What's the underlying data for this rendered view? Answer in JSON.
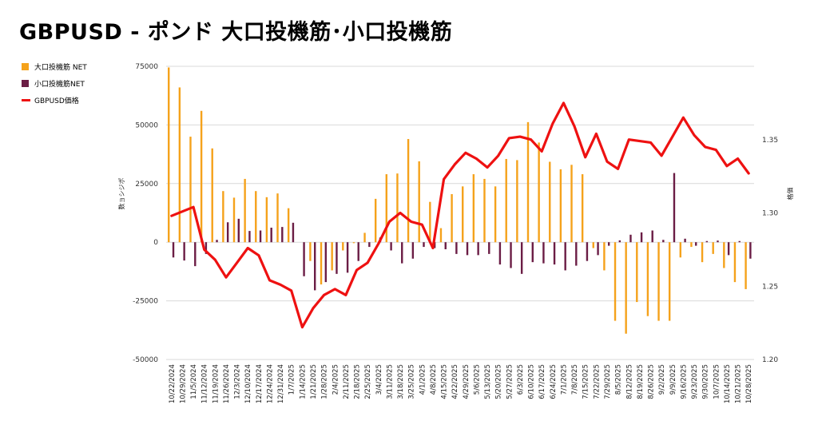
{
  "title": "GBPUSD - ポンド 大口投機筋･小口投機筋",
  "legend": [
    {
      "label": "大口投機筋  NET",
      "color": "#f5a21b",
      "kind": "bar"
    },
    {
      "label": "小口投機筋NET",
      "color": "#6b1d45",
      "kind": "bar"
    },
    {
      "label": "GBPUSD価格",
      "color": "#ee1111",
      "kind": "line"
    }
  ],
  "chart_data": {
    "type": "bar",
    "title": "GBPUSD - ポンド 大口投機筋･小口投機筋",
    "xlabel": "",
    "ylabel": "数ョシジポ",
    "y2label": "格価",
    "ylim": [
      -50000,
      75000
    ],
    "y2lim": [
      1.2,
      1.4
    ],
    "yticks": [
      "75000",
      "50000",
      "25000",
      "0",
      "-25000",
      "-50000"
    ],
    "y2ticks": [
      "1.35",
      "1.30",
      "1.25",
      "1.20"
    ],
    "grid": true,
    "legend_position": "top-left",
    "categories": [
      "10/22/2024",
      "10/29/2024",
      "11/5/2024",
      "11/12/2024",
      "11/19/2024",
      "11/26/2024",
      "12/3/2024",
      "12/10/2024",
      "12/17/2024",
      "12/24/2024",
      "12/31/2024",
      "1/7/2025",
      "1/14/2025",
      "1/21/2025",
      "1/28/2025",
      "2/4/2025",
      "2/11/2025",
      "2/18/2025",
      "2/25/2025",
      "3/4/2025",
      "3/11/2025",
      "3/18/2025",
      "3/25/2025",
      "4/1/2025",
      "4/8/2025",
      "4/15/2025",
      "4/22/2025",
      "4/29/2025",
      "5/6/2025",
      "5/13/2025",
      "5/20/2025",
      "5/27/2025",
      "6/3/2025",
      "6/10/2025",
      "6/17/2025",
      "6/24/2025",
      "7/1/2025",
      "7/8/2025",
      "7/15/2025",
      "7/22/2025",
      "7/29/2025",
      "8/5/2025",
      "8/12/2025",
      "8/19/2025",
      "8/26/2025",
      "9/2/2025",
      "9/9/2025",
      "9/16/2025",
      "9/23/2025",
      "9/30/2025",
      "10/7/2025",
      "10/14/2025",
      "10/21/2025",
      "10/28/2025"
    ],
    "series": [
      {
        "name": "大口投機筋  NET",
        "kind": "bar",
        "color": "#f5a21b",
        "values": [
          74500,
          66000,
          45000,
          56000,
          40000,
          21800,
          19000,
          27000,
          21800,
          19200,
          20800,
          14500,
          0,
          -8000,
          -18000,
          -12000,
          -3500,
          -400,
          4000,
          18500,
          29000,
          29300,
          44000,
          34500,
          17200,
          6000,
          20500,
          23800,
          29000,
          27000,
          23800,
          35500,
          35000,
          51200,
          42500,
          34300,
          31100,
          33000,
          29000,
          -2500,
          -12000,
          -33500,
          -39000,
          -25500,
          -31500,
          -33500,
          -33500,
          -6500,
          -2000,
          -8500,
          -5000,
          -11000,
          -17000,
          -20000
        ]
      },
      {
        "name": "小口投機筋NET",
        "kind": "bar",
        "color": "#6b1d45",
        "values": [
          -6500,
          -7800,
          -10200,
          -5000,
          1000,
          8500,
          10000,
          4800,
          5000,
          6200,
          6500,
          8300,
          -14500,
          -20500,
          -17000,
          -13500,
          -13000,
          -8000,
          -2000,
          2000,
          -3500,
          -9000,
          -7000,
          -2000,
          -2500,
          -3000,
          -5000,
          -5500,
          -5500,
          -5000,
          -9500,
          -11000,
          -13500,
          -8500,
          -9000,
          -9500,
          -12000,
          -10000,
          -8000,
          -5500,
          -1500,
          800,
          3200,
          4200,
          5000,
          1000,
          29500,
          1500,
          -1500,
          500,
          700,
          -5500,
          500,
          -7000
        ]
      },
      {
        "name": "GBPUSD価格",
        "kind": "line",
        "color": "#ee1111",
        "axis": "right",
        "values": [
          1.298,
          1.301,
          1.304,
          1.275,
          1.268,
          1.256,
          1.266,
          1.276,
          1.271,
          1.254,
          1.251,
          1.247,
          1.222,
          1.235,
          1.244,
          1.248,
          1.244,
          1.261,
          1.266,
          1.279,
          1.294,
          1.3,
          1.294,
          1.292,
          1.276,
          1.323,
          1.333,
          1.341,
          1.337,
          1.331,
          1.339,
          1.351,
          1.352,
          1.35,
          1.342,
          1.361,
          1.375,
          1.359,
          1.338,
          1.354,
          1.335,
          1.33,
          1.35,
          1.349,
          1.348,
          1.339,
          1.352,
          1.365,
          1.353,
          1.345,
          1.343,
          1.332,
          1.337,
          1.327
        ]
      }
    ]
  }
}
